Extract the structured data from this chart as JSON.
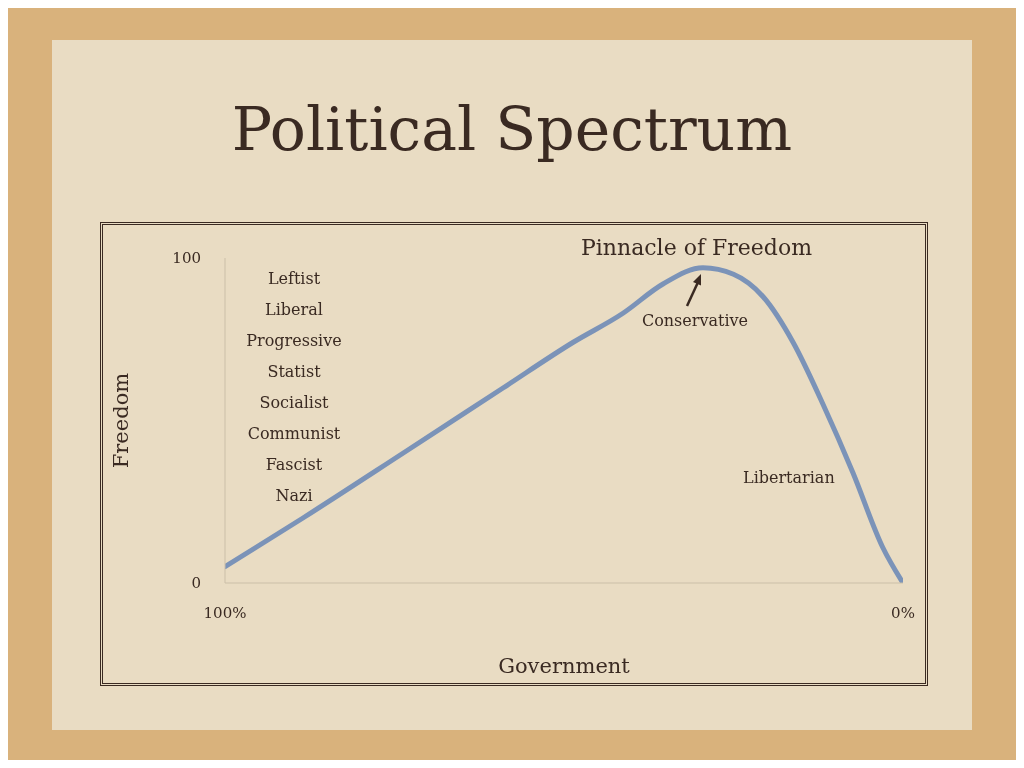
{
  "chart_data": {
    "type": "line",
    "title": "Political Spectrum",
    "xlabel": "Government",
    "ylabel": "Freedom",
    "x": [
      100,
      88.5,
      73.7,
      59,
      48.7,
      41.3,
      35.4,
      29.5,
      25,
      20.6,
      16.2,
      11.8,
      7.4,
      3,
      0
    ],
    "series": [
      {
        "color": "#7b93b8",
        "values": [
          5,
          20,
          40,
          60,
          74,
          83,
          92,
          97,
          95,
          88,
          74,
          55,
          34,
          11,
          0
        ]
      }
    ],
    "xlim": [
      100,
      0
    ],
    "xticks": [
      {
        "value": 100,
        "label": "100%"
      },
      {
        "value": 0,
        "label": "0%"
      }
    ],
    "ylim": [
      0,
      100
    ],
    "yticks": [
      0,
      100
    ],
    "grid": false,
    "legend": false,
    "marker": "none",
    "line_style": "solid",
    "annotations": [
      "Leftist",
      "Liberal",
      "Progressive",
      "Statist",
      "Socialist",
      "Communist",
      "Fascist",
      "Nazi",
      "Pinnacle of Freedom",
      {
        "text": "Conservative",
        "x": 29.5,
        "y": 97
      },
      "Libertarian"
    ]
  }
}
